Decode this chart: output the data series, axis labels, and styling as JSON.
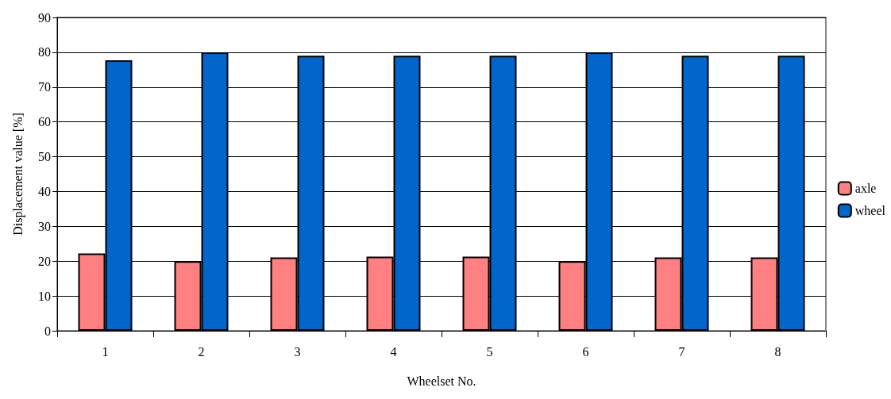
{
  "chart_data": {
    "type": "bar",
    "xlabel": "Wheelset No.",
    "ylabel": "Displacement value [%]",
    "categories": [
      "1",
      "2",
      "3",
      "4",
      "5",
      "6",
      "7",
      "8"
    ],
    "series": [
      {
        "name": "axle",
        "color": "#ff8080",
        "values": [
          22.2,
          20,
          21.1,
          21.3,
          21.3,
          20,
          21.1,
          21.1
        ]
      },
      {
        "name": "wheel",
        "color": "#0066cc",
        "values": [
          77.7,
          80,
          79,
          79,
          79,
          80,
          79,
          79
        ]
      }
    ],
    "ylim": [
      0,
      90
    ],
    "yticks": [
      0,
      10,
      20,
      30,
      40,
      50,
      60,
      70,
      80,
      90
    ],
    "grid": "y",
    "legend": "right"
  }
}
